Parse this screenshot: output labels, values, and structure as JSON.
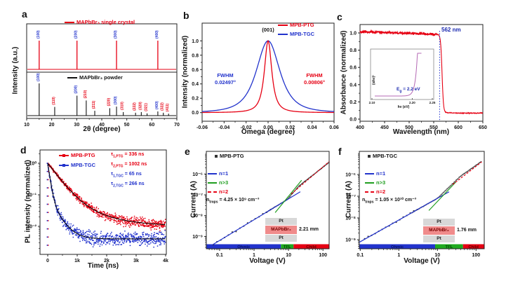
{
  "colors": {
    "red": "#e60013",
    "blue": "#2233cc",
    "green": "#1f9e1f",
    "navy": "#1b2ab0",
    "black": "#111111",
    "purple": "#b468b4",
    "gray_box": "#d8d8d8",
    "pink_box": "#f08b8b",
    "bar_blue": "#2233cc",
    "bar_green": "#1faa1f",
    "bar_red": "#e60013"
  },
  "chart_data": [
    {
      "id": "a",
      "letter": "a",
      "type": "line",
      "xlabel": "2θ (degree)",
      "ylabel": "Intensity (a.u.)",
      "xlim": [
        10,
        70
      ],
      "xticks": [
        10,
        20,
        30,
        40,
        50,
        60,
        70
      ],
      "legend_crystal": "MAPbBr₃ single crystal",
      "legend_powder": "MAPbBr₃ powder",
      "crystal_peaks": [
        {
          "two_theta": 15.0,
          "height": 1.0,
          "label": "(100)"
        },
        {
          "two_theta": 30.1,
          "height": 1.0,
          "label": "(200)"
        },
        {
          "two_theta": 45.9,
          "height": 1.0,
          "label": "(300)"
        },
        {
          "two_theta": 62.4,
          "height": 1.0,
          "label": "(400)"
        }
      ],
      "powder_peaks": [
        {
          "two_theta": 15.0,
          "height": 1.0,
          "label": "(100)",
          "family": "h00"
        },
        {
          "two_theta": 21.2,
          "height": 0.27,
          "label": "(110)"
        },
        {
          "two_theta": 30.1,
          "height": 0.62,
          "label": "(200)",
          "family": "h00"
        },
        {
          "two_theta": 33.8,
          "height": 0.47,
          "label": "(210)"
        },
        {
          "two_theta": 37.2,
          "height": 0.15,
          "label": "(211)"
        },
        {
          "two_theta": 43.2,
          "height": 0.23,
          "label": "(220)"
        },
        {
          "two_theta": 45.9,
          "height": 0.28,
          "label": "(300)",
          "family": "h00"
        },
        {
          "two_theta": 48.6,
          "height": 0.11,
          "label": "(310)"
        },
        {
          "two_theta": 53.5,
          "height": 0.09,
          "label": "(222)"
        },
        {
          "two_theta": 55.8,
          "height": 0.11,
          "label": "(320)"
        },
        {
          "two_theta": 58.1,
          "height": 0.07,
          "label": "(321)"
        },
        {
          "two_theta": 62.4,
          "height": 0.13,
          "label": "(400)",
          "family": "h00"
        },
        {
          "two_theta": 64.6,
          "height": 0.09,
          "label": "(322)"
        },
        {
          "two_theta": 66.7,
          "height": 0.06,
          "label": "(411)"
        }
      ]
    },
    {
      "id": "b",
      "letter": "b",
      "type": "line",
      "xlabel": "Omega (degree)",
      "ylabel": "Intensity (normalized)",
      "xlim": [
        -0.06,
        0.06
      ],
      "ylim": [
        0,
        1.1
      ],
      "xticks": [
        {
          "v": -0.06,
          "t": "-0.06"
        },
        {
          "v": -0.04,
          "t": "-0.04"
        },
        {
          "v": -0.02,
          "t": "-0.02"
        },
        {
          "v": 0,
          "t": "0.00"
        },
        {
          "v": 0.02,
          "t": "0.02"
        },
        {
          "v": 0.04,
          "t": "0.04"
        },
        {
          "v": 0.06,
          "t": "0.06"
        }
      ],
      "yticks": [
        {
          "v": 0,
          "t": "0.0"
        },
        {
          "v": 0.2,
          "t": "0.2"
        },
        {
          "v": 0.4,
          "t": "0.4"
        },
        {
          "v": 0.6,
          "t": "0.6"
        },
        {
          "v": 0.8,
          "t": "0.8"
        },
        {
          "v": 1,
          "t": "1.0"
        }
      ],
      "peak_label": "(001)",
      "series": [
        {
          "name": "MPB-PTG",
          "color": "#e60013",
          "fwhm": 0.00806,
          "fwhm_title": "FWHM",
          "fwhm_value": "0.00806°"
        },
        {
          "name": "MPB-TGC",
          "color": "#2233cc",
          "fwhm": 0.02497,
          "fwhm_title": "FWHM",
          "fwhm_value": "0.02497°"
        }
      ]
    },
    {
      "id": "c",
      "letter": "c",
      "type": "line",
      "xlabel": "Wavelength (nm)",
      "ylabel": "Absorbance (normalized)",
      "xlim": [
        400,
        650
      ],
      "ylim": [
        0,
        1.05
      ],
      "xticks": [
        {
          "v": 400,
          "t": "400"
        },
        {
          "v": 450,
          "t": "450"
        },
        {
          "v": 500,
          "t": "500"
        },
        {
          "v": 550,
          "t": "550"
        },
        {
          "v": 600,
          "t": "600"
        },
        {
          "v": 650,
          "t": "650"
        }
      ],
      "yticks": [
        {
          "v": 0,
          "t": "0.0"
        },
        {
          "v": 0.2,
          "t": "0.2"
        },
        {
          "v": 0.4,
          "t": "0.4"
        },
        {
          "v": 0.6,
          "t": "0.6"
        },
        {
          "v": 0.8,
          "t": "0.8"
        },
        {
          "v": 1,
          "t": "1.0"
        }
      ],
      "plateau": 0.975,
      "tail": 0.075,
      "drop_center_nm": 567,
      "drop_width_nm": 1.45,
      "edge_nm": 562,
      "edge_label": "562 nm",
      "inset": {
        "xlabel": "hν (eV)",
        "ylabel": "(αhν)²",
        "xticks": [
          {
            "v": 2.1,
            "t": "2.10"
          },
          {
            "v": 2.2,
            "t": "2.20"
          },
          {
            "v": 2.25,
            "t": "2.25"
          }
        ],
        "xlim": [
          2.1,
          2.25
        ],
        "onset_ev": 2.21,
        "eg": {
          "sym": "E",
          "sub": "g",
          "eq": " = 2.2 eV"
        }
      }
    },
    {
      "id": "d",
      "letter": "d",
      "type": "scatter",
      "xlabel": "Time (ns)",
      "ylabel": "PL intensity (normalized)",
      "xlim": [
        0,
        4000
      ],
      "ylog": true,
      "xticks": [
        {
          "v": 0,
          "t": "0"
        },
        {
          "v": 1000,
          "t": "1k"
        },
        {
          "v": 2000,
          "t": "2k"
        },
        {
          "v": 3000,
          "t": "3k"
        },
        {
          "v": 4000,
          "t": "4k"
        }
      ],
      "yticks": [
        {
          "v": 1,
          "t": "10⁰"
        },
        {
          "v": 0.1,
          "t": "10⁻¹"
        },
        {
          "v": 0.01,
          "t": "10⁻²"
        }
      ],
      "series": [
        {
          "name": "MPB-PTG",
          "color": "#e60013",
          "a1": 0.93,
          "tau1_ns": 336,
          "a2": 0.07,
          "tau2_ns": 1002,
          "bg": 0.01
        },
        {
          "name": "MPB-TGC",
          "color": "#2233cc",
          "a1": 0.92,
          "tau1_ns": 65,
          "a2": 0.08,
          "tau2_ns": 266,
          "bg": 0.004
        }
      ],
      "annotations": [
        {
          "sym": "τ",
          "sub": "1,PTG",
          "eq": " = 336 ns",
          "color": "#e60013"
        },
        {
          "sym": "τ",
          "sub": "2,PTG",
          "eq": " = 1002 ns",
          "color": "#e60013"
        },
        {
          "sym": "τ",
          "sub": "1,TGC",
          "eq": " = 65 ns",
          "color": "#2233cc"
        },
        {
          "sym": "τ",
          "sub": "2,TGC",
          "eq": " = 266 ns",
          "color": "#2233cc"
        }
      ]
    },
    {
      "id": "e",
      "letter": "e",
      "type": "scatter",
      "title": "MPB-PTG",
      "xlabel": "Voltage (V)",
      "ylabel": "Current (A)",
      "xlog": true,
      "ylog": true,
      "xticks": [
        {
          "v": 0.1,
          "t": "0.1"
        },
        {
          "v": 1,
          "t": "1"
        },
        {
          "v": 10,
          "t": "10"
        },
        {
          "v": 100,
          "t": "100"
        }
      ],
      "yticks": [
        {
          "v": 1e-06,
          "t": "10⁻⁶"
        },
        {
          "v": 1e-07,
          "t": "10⁻⁷"
        },
        {
          "v": 1e-08,
          "t": "10⁻⁸"
        },
        {
          "v": 1e-09,
          "t": "10⁻⁹"
        }
      ],
      "lines": [
        {
          "name": "n=1",
          "color": "#2233cc",
          "dash": false,
          "x1": 0.05,
          "y1": 3.2e-10,
          "x2": 22,
          "y2": 1.4e-07
        },
        {
          "name": "n>3",
          "color": "#1f9e1f",
          "dash": false,
          "x1": 4.1,
          "y1": 1.4e-08,
          "x2": 24,
          "y2": 5e-07
        },
        {
          "name": "n=2",
          "color": "#e60013",
          "dash": true,
          "x1": 12,
          "y1": 1.1e-07,
          "x2": 150,
          "y2": 3.9e-06
        }
      ],
      "model": {
        "i1": 6.4e-09,
        "v_tfl": 9,
        "n_tfl": 1.9,
        "v_child": 20,
        "n_child": 1.3,
        "v_min": 0.065,
        "v_max": 150
      },
      "ntraps": {
        "sym": "n",
        "sub": "traps",
        "eq": " = 4.25 × 10⁹ cm⁻³"
      },
      "regions": [
        {
          "label": "Ohmic",
          "from": 0.042,
          "to": 6,
          "color": "#2233cc",
          "label_color": "#061263"
        },
        {
          "label": "TFL",
          "from": 6,
          "to": 14,
          "color": "#1faa1f",
          "label_color": "#043d04"
        },
        {
          "label": "Child",
          "from": 14,
          "to": 150,
          "color": "#e60013",
          "label_color": "#5c0202"
        }
      ],
      "stack": {
        "top": "Pt",
        "mid": "MAPbBr₃",
        "bot": "Pt",
        "thickness": "2.21 mm"
      }
    },
    {
      "id": "f",
      "letter": "f",
      "type": "scatter",
      "title": "MPB-TGC",
      "xlabel": "Voltage (V)",
      "ylabel": "Current (A)",
      "xlog": true,
      "ylog": true,
      "xticks": [
        {
          "v": 0.1,
          "t": "0.1"
        },
        {
          "v": 1,
          "t": "1"
        },
        {
          "v": 10,
          "t": "10"
        },
        {
          "v": 100,
          "t": "100"
        }
      ],
      "yticks": [
        {
          "v": 1e-06,
          "t": "10⁻⁶"
        },
        {
          "v": 1e-07,
          "t": "10⁻⁷"
        },
        {
          "v": 1e-08,
          "t": "10⁻⁸"
        },
        {
          "v": 1e-09,
          "t": "10⁻⁹"
        }
      ],
      "lines": [
        {
          "name": "n=1",
          "color": "#2233cc",
          "dash": false,
          "x1": 0.095,
          "y1": 7.6e-10,
          "x2": 20,
          "y2": 1.6e-07
        },
        {
          "name": "n>3",
          "color": "#1f9e1f",
          "dash": false,
          "x1": 6,
          "y1": 2.2e-08,
          "x2": 30,
          "y2": 4.5e-07
        },
        {
          "name": "n=2",
          "color": "#e60013",
          "dash": true,
          "x1": 25,
          "y1": 3.5e-07,
          "x2": 140,
          "y2": 3.8e-06
        }
      ],
      "model": {
        "i1": 8e-09,
        "v_tfl": 10,
        "n_tfl": 1.7,
        "v_child": 40,
        "n_child": 1.25,
        "v_min": 0.13,
        "v_max": 135
      },
      "ntraps": {
        "sym": "n",
        "sub": "traps",
        "eq": " = 1.05 × 10¹⁰ cm⁻³"
      },
      "regions": [
        {
          "label": "Ohmic",
          "from": 0.095,
          "to": 8.7,
          "color": "#2233cc",
          "label_color": "#061263"
        },
        {
          "label": "TFL",
          "from": 8.7,
          "to": 46,
          "color": "#1faa1f",
          "label_color": "#043d04"
        },
        {
          "label": "Child",
          "from": 46,
          "to": 160,
          "color": "#e60013",
          "label_color": "#5c0202"
        }
      ],
      "stack": {
        "top": "Pt",
        "mid": "MAPbBr₃",
        "bot": "Pt",
        "thickness": "1.76 mm"
      }
    }
  ]
}
